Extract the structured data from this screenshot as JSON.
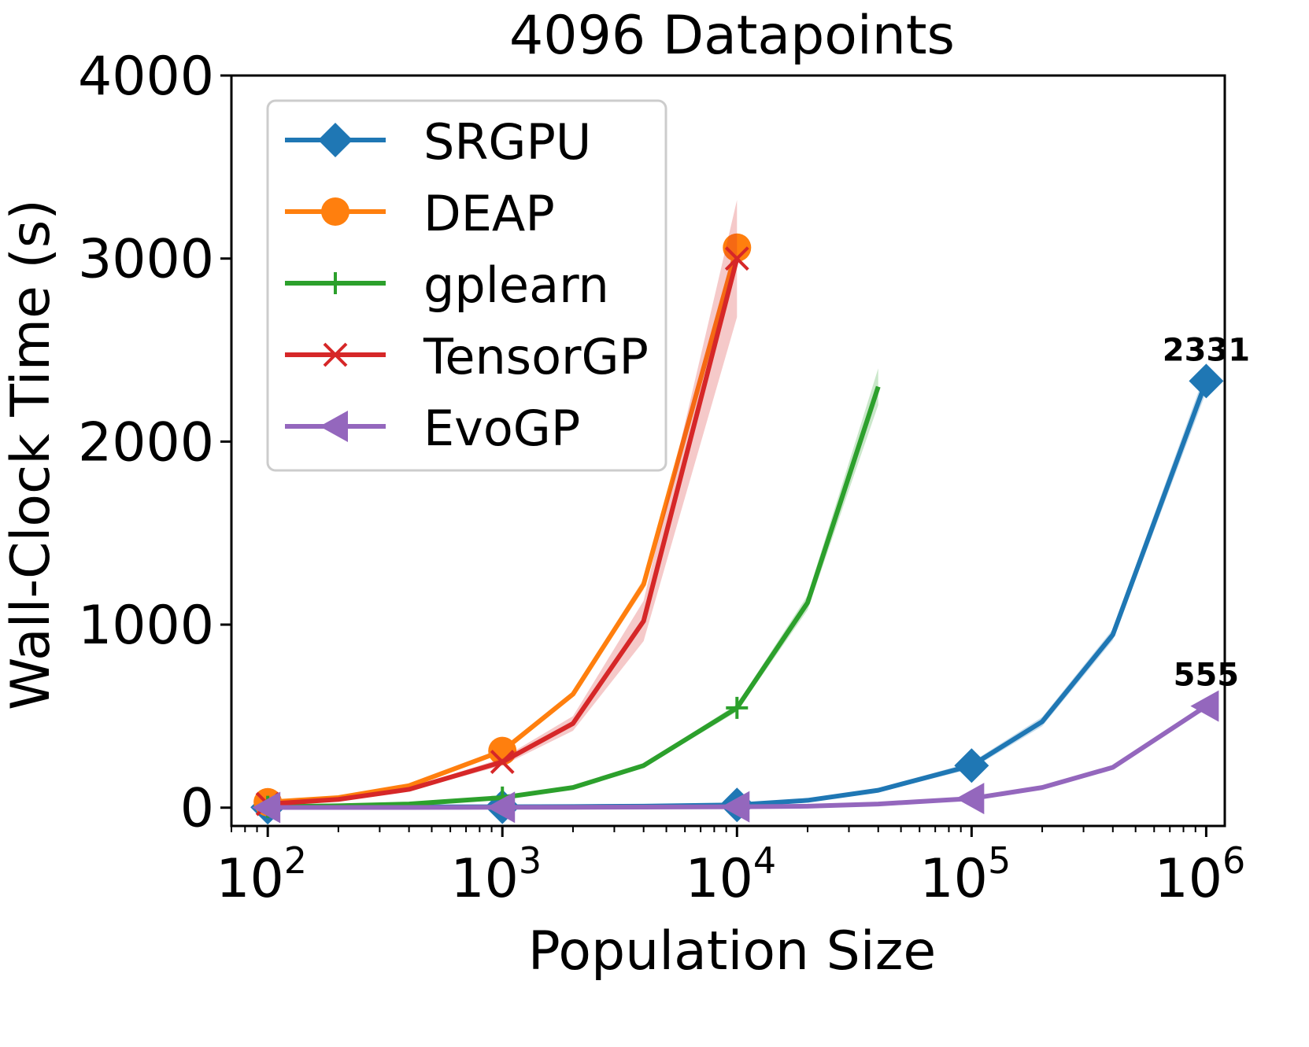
{
  "chart_data": {
    "type": "line",
    "title": "4096 Datapoints",
    "xlabel": "Population Size",
    "ylabel": "Wall-Clock Time (s)",
    "x_scale": "log",
    "xlim": [
      70,
      1200000
    ],
    "ylim": [
      -100,
      4000
    ],
    "grid": false,
    "legend_position": "upper-left",
    "x_ticks": [
      {
        "value": 100,
        "base": "10",
        "exp": "2"
      },
      {
        "value": 1000,
        "base": "10",
        "exp": "3"
      },
      {
        "value": 10000,
        "base": "10",
        "exp": "4"
      },
      {
        "value": 100000,
        "base": "10",
        "exp": "5"
      },
      {
        "value": 1000000,
        "base": "10",
        "exp": "6"
      }
    ],
    "y_ticks": [
      {
        "value": 0,
        "label": "0"
      },
      {
        "value": 1000,
        "label": "1000"
      },
      {
        "value": 2000,
        "label": "2000"
      },
      {
        "value": 3000,
        "label": "3000"
      },
      {
        "value": 4000,
        "label": "4000"
      }
    ],
    "series": [
      {
        "name": "SRGPU",
        "color": "#1f77b4",
        "marker": "diamond",
        "x": [
          100,
          200,
          400,
          1000,
          2000,
          4000,
          10000,
          20000,
          40000,
          100000,
          200000,
          400000,
          1000000
        ],
        "y": [
          2,
          3,
          4,
          5,
          6,
          8,
          15,
          40,
          95,
          230,
          470,
          945,
          2331
        ],
        "band": [
          0,
          0,
          0,
          1,
          1,
          2,
          4,
          6,
          10,
          18,
          25,
          30,
          60
        ],
        "marked_x": [
          100,
          1000,
          10000,
          100000,
          1000000
        ]
      },
      {
        "name": "DEAP",
        "color": "#ff7f0e",
        "marker": "circle",
        "x": [
          100,
          200,
          400,
          1000,
          2000,
          4000,
          10000
        ],
        "y": [
          30,
          55,
          120,
          310,
          620,
          1220,
          3060
        ],
        "band": [
          2,
          3,
          5,
          10,
          15,
          30,
          40
        ],
        "marked_x": [
          100,
          1000,
          10000
        ]
      },
      {
        "name": "gplearn",
        "color": "#2ca02c",
        "marker": "plus",
        "x": [
          100,
          200,
          400,
          1000,
          2000,
          4000,
          10000,
          20000,
          40000
        ],
        "y": [
          5,
          10,
          20,
          55,
          110,
          230,
          545,
          1120,
          2300
        ],
        "band": [
          1,
          1,
          2,
          4,
          6,
          10,
          20,
          40,
          100
        ],
        "marked_x": [
          100,
          1000,
          10000
        ]
      },
      {
        "name": "TensorGP",
        "color": "#d62728",
        "marker": "x",
        "x": [
          100,
          200,
          400,
          1000,
          2000,
          4000,
          10000
        ],
        "y": [
          20,
          45,
          100,
          250,
          460,
          1020,
          3000
        ],
        "band": [
          3,
          5,
          8,
          20,
          40,
          110,
          320
        ],
        "marked_x": [
          100,
          1000,
          10000
        ]
      },
      {
        "name": "EvoGP",
        "color": "#9467bd",
        "marker": "triangle-left",
        "x": [
          100,
          200,
          400,
          1000,
          2000,
          4000,
          10000,
          20000,
          40000,
          100000,
          200000,
          400000,
          1000000
        ],
        "y": [
          1,
          1,
          1,
          2,
          2,
          3,
          5,
          8,
          20,
          50,
          110,
          220,
          555
        ],
        "band": [
          0,
          0,
          0,
          0,
          0,
          0,
          1,
          1,
          2,
          4,
          6,
          8,
          12
        ],
        "marked_x": [
          100,
          1000,
          10000,
          100000,
          1000000
        ]
      }
    ],
    "annotations": [
      {
        "text": "2331",
        "x": 1000000,
        "y": 2331
      },
      {
        "text": "555",
        "x": 1000000,
        "y": 555
      }
    ]
  }
}
